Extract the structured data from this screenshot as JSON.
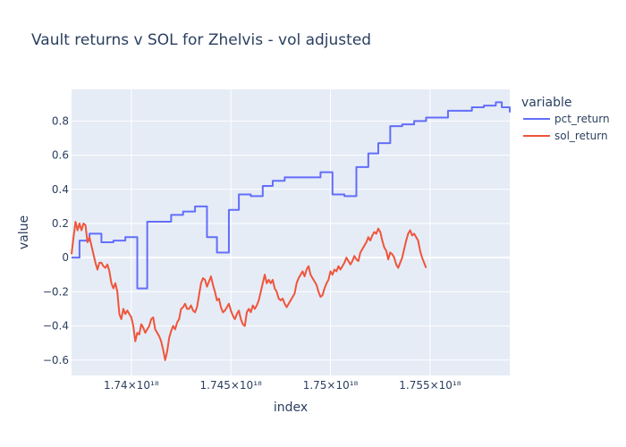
{
  "chart_data": {
    "type": "line",
    "title": "Vault returns v SOL for Zhelvis - vol adjusted",
    "xlabel": "index",
    "ylabel": "value",
    "xlim": [
      1.737e+18,
      1.759e+18
    ],
    "ylim": [
      -0.69,
      0.985
    ],
    "x_ticks": [
      {
        "value": 1.74e+18,
        "label": "1.74×10¹⁸"
      },
      {
        "value": 1.745e+18,
        "label": "1.745×10¹⁸"
      },
      {
        "value": 1.75e+18,
        "label": "1.75×10¹⁸"
      },
      {
        "value": 1.755e+18,
        "label": "1.755×10¹⁸"
      }
    ],
    "y_ticks": [
      {
        "value": 0.8,
        "label": "0.8"
      },
      {
        "value": 0.6,
        "label": "0.6"
      },
      {
        "value": 0.4,
        "label": "0.4"
      },
      {
        "value": 0.2,
        "label": "0.2"
      },
      {
        "value": 0,
        "label": "0"
      },
      {
        "value": -0.2,
        "label": "−0.2"
      },
      {
        "value": -0.4,
        "label": "−0.4"
      },
      {
        "value": -0.6,
        "label": "−0.6"
      }
    ],
    "grid": true,
    "legend": {
      "title": "variable",
      "position": "top-right"
    },
    "series": [
      {
        "name": "pct_return",
        "color": "#636efa",
        "shape": "hv",
        "points": [
          [
            1.737e+18,
            0.0
          ],
          [
            1.7374e+18,
            0.1
          ],
          [
            1.7379e+18,
            0.14
          ],
          [
            1.7385e+18,
            0.09
          ],
          [
            1.7391e+18,
            0.1
          ],
          [
            1.7397e+18,
            0.12
          ],
          [
            1.7403e+18,
            -0.18
          ],
          [
            1.7408e+18,
            0.21
          ],
          [
            1.742e+18,
            0.25
          ],
          [
            1.7426e+18,
            0.27
          ],
          [
            1.7432e+18,
            0.3
          ],
          [
            1.7438e+18,
            0.12
          ],
          [
            1.7443e+18,
            0.03
          ],
          [
            1.7449e+18,
            0.28
          ],
          [
            1.7454e+18,
            0.37
          ],
          [
            1.746e+18,
            0.36
          ],
          [
            1.7466e+18,
            0.42
          ],
          [
            1.7471e+18,
            0.45
          ],
          [
            1.7477e+18,
            0.47
          ],
          [
            1.749e+18,
            0.47
          ],
          [
            1.7495e+18,
            0.5
          ],
          [
            1.7501e+18,
            0.37
          ],
          [
            1.7507e+18,
            0.36
          ],
          [
            1.7513e+18,
            0.53
          ],
          [
            1.7519e+18,
            0.61
          ],
          [
            1.7524e+18,
            0.67
          ],
          [
            1.753e+18,
            0.77
          ],
          [
            1.7536e+18,
            0.78
          ],
          [
            1.7542e+18,
            0.8
          ],
          [
            1.7548e+18,
            0.82
          ],
          [
            1.7559e+18,
            0.86
          ],
          [
            1.7571e+18,
            0.88
          ],
          [
            1.7577e+18,
            0.89
          ],
          [
            1.7583e+18,
            0.91
          ],
          [
            1.7586e+18,
            0.88
          ],
          [
            1.759e+18,
            0.85
          ]
        ]
      },
      {
        "name": "sol_return",
        "color": "#ef553b",
        "shape": "linear",
        "points": [
          [
            1.737e+18,
            0.02
          ],
          [
            1.7371e+18,
            0.12
          ],
          [
            1.7372e+18,
            0.21
          ],
          [
            1.7373e+18,
            0.16
          ],
          [
            1.7374e+18,
            0.2
          ],
          [
            1.7375e+18,
            0.16
          ],
          [
            1.7376e+18,
            0.2
          ],
          [
            1.7377e+18,
            0.19
          ],
          [
            1.7378e+18,
            0.09
          ],
          [
            1.7379e+18,
            0.12
          ],
          [
            1.738e+18,
            0.07
          ],
          [
            1.7381e+18,
            0.02
          ],
          [
            1.7382e+18,
            -0.03
          ],
          [
            1.7383e+18,
            -0.07
          ],
          [
            1.7384e+18,
            -0.03
          ],
          [
            1.7385e+18,
            -0.03
          ],
          [
            1.7386e+18,
            -0.05
          ],
          [
            1.7387e+18,
            -0.06
          ],
          [
            1.7388e+18,
            -0.04
          ],
          [
            1.7389e+18,
            -0.08
          ],
          [
            1.739e+18,
            -0.15
          ],
          [
            1.7391e+18,
            -0.18
          ],
          [
            1.7392e+18,
            -0.15
          ],
          [
            1.7393e+18,
            -0.2
          ],
          [
            1.7394e+18,
            -0.33
          ],
          [
            1.7395e+18,
            -0.36
          ],
          [
            1.7396e+18,
            -0.3
          ],
          [
            1.7397e+18,
            -0.33
          ],
          [
            1.7398e+18,
            -0.31
          ],
          [
            1.7399e+18,
            -0.33
          ],
          [
            1.74e+18,
            -0.35
          ],
          [
            1.7401e+18,
            -0.4
          ],
          [
            1.7402e+18,
            -0.49
          ],
          [
            1.7403e+18,
            -0.44
          ],
          [
            1.7404e+18,
            -0.45
          ],
          [
            1.7405e+18,
            -0.39
          ],
          [
            1.7406e+18,
            -0.41
          ],
          [
            1.7407e+18,
            -0.44
          ],
          [
            1.7408e+18,
            -0.42
          ],
          [
            1.7409e+18,
            -0.4
          ],
          [
            1.741e+18,
            -0.36
          ],
          [
            1.7411e+18,
            -0.35
          ],
          [
            1.7412e+18,
            -0.42
          ],
          [
            1.7413e+18,
            -0.44
          ],
          [
            1.7414e+18,
            -0.46
          ],
          [
            1.7415e+18,
            -0.49
          ],
          [
            1.7416e+18,
            -0.54
          ],
          [
            1.7417e+18,
            -0.6
          ],
          [
            1.7418e+18,
            -0.55
          ],
          [
            1.7419e+18,
            -0.47
          ],
          [
            1.742e+18,
            -0.43
          ],
          [
            1.7421e+18,
            -0.4
          ],
          [
            1.7422e+18,
            -0.42
          ],
          [
            1.7423e+18,
            -0.38
          ],
          [
            1.7424e+18,
            -0.36
          ],
          [
            1.7425e+18,
            -0.3
          ],
          [
            1.7426e+18,
            -0.29
          ],
          [
            1.7427e+18,
            -0.27
          ],
          [
            1.7428e+18,
            -0.3
          ],
          [
            1.7429e+18,
            -0.3
          ],
          [
            1.743e+18,
            -0.28
          ],
          [
            1.7431e+18,
            -0.31
          ],
          [
            1.7432e+18,
            -0.32
          ],
          [
            1.7433e+18,
            -0.29
          ],
          [
            1.7434e+18,
            -0.22
          ],
          [
            1.7435e+18,
            -0.15
          ],
          [
            1.7436e+18,
            -0.12
          ],
          [
            1.7437e+18,
            -0.13
          ],
          [
            1.7438e+18,
            -0.17
          ],
          [
            1.7439e+18,
            -0.14
          ],
          [
            1.744e+18,
            -0.11
          ],
          [
            1.7441e+18,
            -0.16
          ],
          [
            1.7442e+18,
            -0.2
          ],
          [
            1.7443e+18,
            -0.25
          ],
          [
            1.7444e+18,
            -0.24
          ],
          [
            1.7445e+18,
            -0.29
          ],
          [
            1.7446e+18,
            -0.32
          ],
          [
            1.7447e+18,
            -0.31
          ],
          [
            1.7448e+18,
            -0.29
          ],
          [
            1.7449e+18,
            -0.27
          ],
          [
            1.745e+18,
            -0.31
          ],
          [
            1.7451e+18,
            -0.34
          ],
          [
            1.7452e+18,
            -0.36
          ],
          [
            1.7453e+18,
            -0.33
          ],
          [
            1.7454e+18,
            -0.31
          ],
          [
            1.7455e+18,
            -0.36
          ],
          [
            1.7456e+18,
            -0.39
          ],
          [
            1.7457e+18,
            -0.4
          ],
          [
            1.7458e+18,
            -0.32
          ],
          [
            1.7459e+18,
            -0.3
          ],
          [
            1.746e+18,
            -0.32
          ],
          [
            1.7461e+18,
            -0.28
          ],
          [
            1.7462e+18,
            -0.3
          ],
          [
            1.7463e+18,
            -0.28
          ],
          [
            1.7464e+18,
            -0.25
          ],
          [
            1.7465e+18,
            -0.2
          ],
          [
            1.7466e+18,
            -0.15
          ],
          [
            1.7467e+18,
            -0.1
          ],
          [
            1.7468e+18,
            -0.15
          ],
          [
            1.7469e+18,
            -0.13
          ],
          [
            1.747e+18,
            -0.15
          ],
          [
            1.7471e+18,
            -0.13
          ],
          [
            1.7472e+18,
            -0.18
          ],
          [
            1.7473e+18,
            -0.2
          ],
          [
            1.7474e+18,
            -0.24
          ],
          [
            1.7475e+18,
            -0.25
          ],
          [
            1.7476e+18,
            -0.24
          ],
          [
            1.7477e+18,
            -0.27
          ],
          [
            1.7478e+18,
            -0.29
          ],
          [
            1.7479e+18,
            -0.27
          ],
          [
            1.748e+18,
            -0.25
          ],
          [
            1.7481e+18,
            -0.23
          ],
          [
            1.7482e+18,
            -0.21
          ],
          [
            1.7483e+18,
            -0.15
          ],
          [
            1.7484e+18,
            -0.12
          ],
          [
            1.7485e+18,
            -0.1
          ],
          [
            1.7486e+18,
            -0.08
          ],
          [
            1.7487e+18,
            -0.11
          ],
          [
            1.7488e+18,
            -0.07
          ],
          [
            1.7489e+18,
            -0.05
          ],
          [
            1.749e+18,
            -0.1
          ],
          [
            1.7491e+18,
            -0.12
          ],
          [
            1.7492e+18,
            -0.14
          ],
          [
            1.7493e+18,
            -0.16
          ],
          [
            1.7494e+18,
            -0.2
          ],
          [
            1.7495e+18,
            -0.23
          ],
          [
            1.7496e+18,
            -0.22
          ],
          [
            1.7497e+18,
            -0.18
          ],
          [
            1.7498e+18,
            -0.15
          ],
          [
            1.7499e+18,
            -0.13
          ],
          [
            1.75e+18,
            -0.08
          ],
          [
            1.7501e+18,
            -0.1
          ],
          [
            1.7502e+18,
            -0.07
          ],
          [
            1.7503e+18,
            -0.08
          ],
          [
            1.7504e+18,
            -0.05
          ],
          [
            1.7505e+18,
            -0.07
          ],
          [
            1.7506e+18,
            -0.05
          ],
          [
            1.7507e+18,
            -0.03
          ],
          [
            1.7508e+18,
            0.0
          ],
          [
            1.7509e+18,
            -0.02
          ],
          [
            1.751e+18,
            -0.04
          ],
          [
            1.7511e+18,
            -0.02
          ],
          [
            1.7512e+18,
            0.01
          ],
          [
            1.7513e+18,
            -0.01
          ],
          [
            1.7514e+18,
            -0.02
          ],
          [
            1.7515e+18,
            0.03
          ],
          [
            1.7516e+18,
            0.05
          ],
          [
            1.7517e+18,
            0.07
          ],
          [
            1.7518e+18,
            0.09
          ],
          [
            1.7519e+18,
            0.12
          ],
          [
            1.752e+18,
            0.1
          ],
          [
            1.7521e+18,
            0.13
          ],
          [
            1.7522e+18,
            0.15
          ],
          [
            1.7523e+18,
            0.14
          ],
          [
            1.7524e+18,
            0.17
          ],
          [
            1.7525e+18,
            0.15
          ],
          [
            1.7526e+18,
            0.1
          ],
          [
            1.7527e+18,
            0.06
          ],
          [
            1.7528e+18,
            0.04
          ],
          [
            1.7529e+18,
            -0.01
          ],
          [
            1.753e+18,
            0.03
          ],
          [
            1.7531e+18,
            0.02
          ],
          [
            1.7532e+18,
            0.0
          ],
          [
            1.7533e+18,
            -0.04
          ],
          [
            1.7534e+18,
            -0.06
          ],
          [
            1.7535e+18,
            -0.03
          ],
          [
            1.7536e+18,
            0.0
          ],
          [
            1.7537e+18,
            0.05
          ],
          [
            1.7538e+18,
            0.1
          ],
          [
            1.7539e+18,
            0.14
          ],
          [
            1.754e+18,
            0.16
          ],
          [
            1.7541e+18,
            0.13
          ],
          [
            1.7542e+18,
            0.14
          ],
          [
            1.7543e+18,
            0.12
          ],
          [
            1.7544e+18,
            0.1
          ],
          [
            1.7545e+18,
            0.04
          ],
          [
            1.7546e+18,
            0.0
          ],
          [
            1.7547e+18,
            -0.03
          ],
          [
            1.7548e+18,
            -0.06
          ]
        ]
      }
    ]
  }
}
